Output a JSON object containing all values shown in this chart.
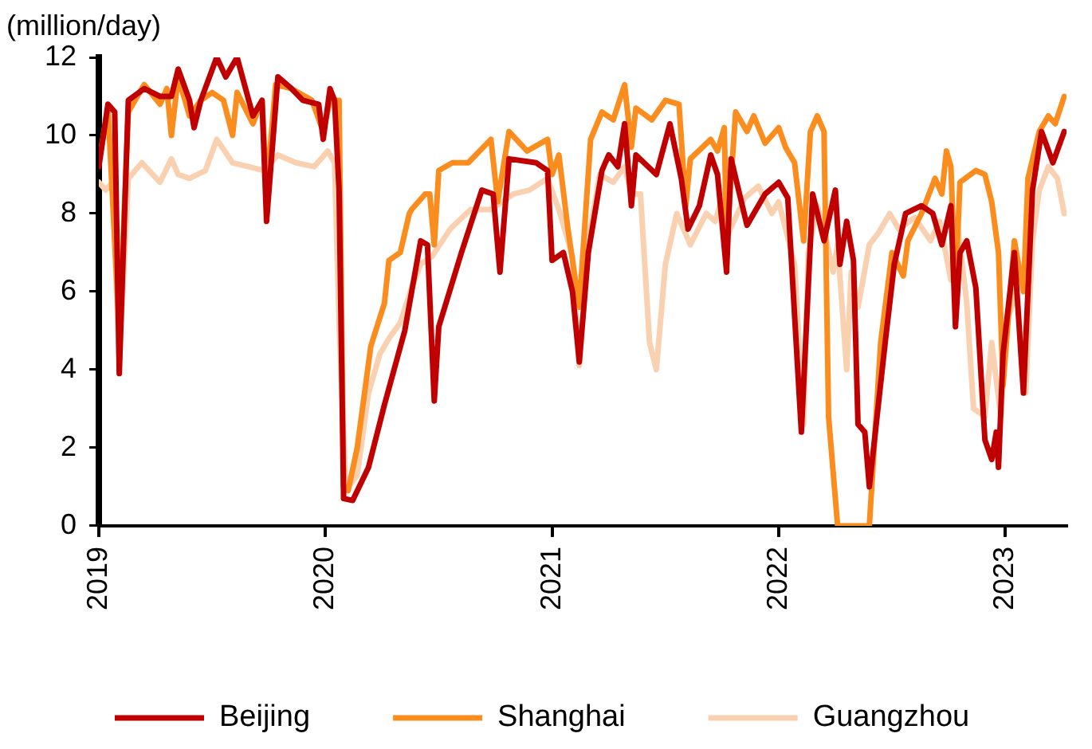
{
  "chart_data": {
    "type": "line",
    "ylabel": "(million/day)",
    "xlim": [
      2019,
      2023.27
    ],
    "xticks": [
      2019,
      2020,
      2021,
      2022,
      2023
    ],
    "ylim": [
      0,
      12
    ],
    "yticks": [
      0,
      2,
      4,
      6,
      8,
      10,
      12
    ],
    "grid": false,
    "legend": "bottom",
    "marker": "none",
    "line_style": "solid",
    "series": [
      {
        "name": "Beijing",
        "color": "#c00000",
        "x": [
          2019.0,
          2019.04,
          2019.07,
          2019.09,
          2019.13,
          2019.2,
          2019.27,
          2019.32,
          2019.35,
          2019.4,
          2019.42,
          2019.45,
          2019.52,
          2019.56,
          2019.61,
          2019.68,
          2019.72,
          2019.74,
          2019.79,
          2019.85,
          2019.9,
          2019.97,
          2019.99,
          2020.02,
          2020.04,
          2020.06,
          2020.08,
          2020.12,
          2020.19,
          2020.26,
          2020.35,
          2020.42,
          2020.45,
          2020.48,
          2020.5,
          2020.6,
          2020.69,
          2020.74,
          2020.77,
          2020.81,
          2020.93,
          2020.98,
          2021.0,
          2021.05,
          2021.09,
          2021.12,
          2021.16,
          2021.22,
          2021.25,
          2021.29,
          2021.32,
          2021.35,
          2021.37,
          2021.46,
          2021.52,
          2021.57,
          2021.6,
          2021.65,
          2021.7,
          2021.73,
          2021.77,
          2021.79,
          2021.86,
          2021.94,
          2022.0,
          2022.04,
          2022.1,
          2022.15,
          2022.2,
          2022.25,
          2022.27,
          2022.3,
          2022.33,
          2022.35,
          2022.38,
          2022.4,
          2022.47,
          2022.51,
          2022.56,
          2022.63,
          2022.68,
          2022.72,
          2022.76,
          2022.78,
          2022.8,
          2022.83,
          2022.87,
          2022.91,
          2022.94,
          2022.96,
          2022.97,
          2022.99,
          2023.04,
          2023.08,
          2023.12,
          2023.16,
          2023.21,
          2023.26
        ],
        "values": [
          9.2,
          10.8,
          10.6,
          3.9,
          10.9,
          11.2,
          11.0,
          11.0,
          11.7,
          10.9,
          10.2,
          10.9,
          12.0,
          11.5,
          12.0,
          10.5,
          10.9,
          7.8,
          11.5,
          11.2,
          10.9,
          10.8,
          9.9,
          11.2,
          10.9,
          8.6,
          0.7,
          0.65,
          1.5,
          3.1,
          5.0,
          7.3,
          7.2,
          3.2,
          5.1,
          7.0,
          8.6,
          8.5,
          6.5,
          9.4,
          9.3,
          9.1,
          6.8,
          7.0,
          6.0,
          4.2,
          7.0,
          9.1,
          9.5,
          9.2,
          10.3,
          8.2,
          9.5,
          9.0,
          10.3,
          8.9,
          7.6,
          8.2,
          9.5,
          9.0,
          6.5,
          9.4,
          7.7,
          8.5,
          8.8,
          8.4,
          2.4,
          8.5,
          7.3,
          8.6,
          6.7,
          7.8,
          6.8,
          2.6,
          2.4,
          1.0,
          4.7,
          6.7,
          8.0,
          8.2,
          8.0,
          7.2,
          8.2,
          5.1,
          7.0,
          7.3,
          6.1,
          2.2,
          1.7,
          2.4,
          1.5,
          4.4,
          7.0,
          3.4,
          8.6,
          10.1,
          9.3,
          10.1
        ]
      },
      {
        "name": "Shanghai",
        "color": "#fb8c1e",
        "x": [
          2019.0,
          2019.04,
          2019.09,
          2019.13,
          2019.2,
          2019.27,
          2019.3,
          2019.32,
          2019.35,
          2019.4,
          2019.45,
          2019.5,
          2019.55,
          2019.59,
          2019.61,
          2019.68,
          2019.72,
          2019.74,
          2019.78,
          2019.85,
          2019.94,
          2019.99,
          2020.02,
          2020.06,
          2020.08,
          2020.1,
          2020.14,
          2020.2,
          2020.26,
          2020.28,
          2020.33,
          2020.37,
          2020.38,
          2020.44,
          2020.46,
          2020.48,
          2020.5,
          2020.56,
          2020.63,
          2020.73,
          2020.76,
          2020.81,
          2020.89,
          2020.98,
          2021.0,
          2021.03,
          2021.07,
          2021.12,
          2021.17,
          2021.22,
          2021.27,
          2021.32,
          2021.35,
          2021.37,
          2021.44,
          2021.5,
          2021.56,
          2021.59,
          2021.61,
          2021.7,
          2021.73,
          2021.76,
          2021.77,
          2021.81,
          2021.86,
          2021.89,
          2021.94,
          2022.0,
          2022.03,
          2022.07,
          2022.11,
          2022.14,
          2022.17,
          2022.2,
          2022.22,
          2022.26,
          2022.4,
          2022.45,
          2022.5,
          2022.55,
          2022.57,
          2022.63,
          2022.69,
          2022.72,
          2022.74,
          2022.76,
          2022.78,
          2022.8,
          2022.87,
          2022.91,
          2022.94,
          2022.97,
          2022.99,
          2023.04,
          2023.08,
          2023.1,
          2023.15,
          2023.19,
          2023.22,
          2023.26
        ],
        "values": [
          9.3,
          10.7,
          5.0,
          10.6,
          11.3,
          10.8,
          11.2,
          10.0,
          11.5,
          10.5,
          10.9,
          11.1,
          10.9,
          10.0,
          11.1,
          10.3,
          10.9,
          8.6,
          11.3,
          11.2,
          10.9,
          10.1,
          10.9,
          10.9,
          1.0,
          0.9,
          2.0,
          4.6,
          5.7,
          6.8,
          7.0,
          8.0,
          8.1,
          8.5,
          8.5,
          7.2,
          9.1,
          9.3,
          9.3,
          9.9,
          8.3,
          10.1,
          9.6,
          9.9,
          9.0,
          9.5,
          7.6,
          5.6,
          9.9,
          10.6,
          10.4,
          11.3,
          9.7,
          10.7,
          10.4,
          10.9,
          10.8,
          8.2,
          9.4,
          9.9,
          9.6,
          10.2,
          7.2,
          10.6,
          10.1,
          10.5,
          9.8,
          10.2,
          9.7,
          9.3,
          7.3,
          10.1,
          10.5,
          10.1,
          2.8,
          0,
          0,
          4.7,
          7.0,
          6.4,
          7.3,
          8.0,
          8.9,
          8.5,
          9.6,
          9.2,
          6.1,
          8.8,
          9.1,
          9.0,
          8.3,
          7.0,
          3.6,
          7.3,
          6.0,
          8.9,
          10.1,
          10.5,
          10.3,
          11.0
        ]
      },
      {
        "name": "Guangzhou",
        "color": "#f9d0b0",
        "x": [
          2019.0,
          2019.03,
          2019.06,
          2019.09,
          2019.13,
          2019.19,
          2019.27,
          2019.32,
          2019.35,
          2019.4,
          2019.47,
          2019.52,
          2019.59,
          2019.66,
          2019.73,
          2019.79,
          2019.87,
          2019.95,
          2020.01,
          2020.04,
          2020.06,
          2020.09,
          2020.14,
          2020.19,
          2020.24,
          2020.28,
          2020.33,
          2020.38,
          2020.42,
          2020.47,
          2020.55,
          2020.64,
          2020.73,
          2020.83,
          2020.9,
          2020.98,
          2021.03,
          2021.09,
          2021.12,
          2021.16,
          2021.21,
          2021.27,
          2021.32,
          2021.35,
          2021.39,
          2021.43,
          2021.46,
          2021.5,
          2021.55,
          2021.61,
          2021.68,
          2021.72,
          2021.76,
          2021.77,
          2021.85,
          2021.91,
          2021.97,
          2022.0,
          2022.07,
          2022.11,
          2022.13,
          2022.17,
          2022.2,
          2022.24,
          2022.26,
          2022.3,
          2022.32,
          2022.35,
          2022.4,
          2022.44,
          2022.49,
          2022.53,
          2022.6,
          2022.67,
          2022.71,
          2022.76,
          2022.79,
          2022.83,
          2022.86,
          2022.91,
          2022.94,
          2022.98,
          2023.01,
          2023.05,
          2023.09,
          2023.12,
          2023.15,
          2023.19,
          2023.23,
          2023.26
        ],
        "values": [
          8.8,
          8.6,
          8.8,
          4.2,
          8.9,
          9.3,
          8.8,
          9.4,
          9.0,
          8.9,
          9.1,
          9.9,
          9.3,
          9.2,
          9.1,
          9.5,
          9.3,
          9.2,
          9.6,
          9.3,
          5.2,
          0.9,
          1.3,
          3.4,
          4.4,
          4.8,
          5.2,
          6.1,
          6.7,
          6.9,
          7.6,
          8.1,
          8.1,
          8.5,
          8.6,
          8.9,
          8.1,
          6.9,
          4.1,
          7.3,
          9.0,
          8.8,
          9.2,
          8.5,
          8.5,
          4.7,
          4.0,
          6.7,
          8.0,
          7.2,
          8.0,
          7.8,
          8.6,
          7.4,
          8.4,
          8.7,
          8.0,
          8.3,
          6.7,
          2.6,
          7.0,
          8.2,
          7.6,
          6.5,
          7.2,
          4.0,
          6.5,
          5.6,
          7.2,
          7.5,
          8.0,
          7.6,
          7.9,
          7.3,
          7.8,
          6.3,
          7.7,
          5.7,
          3.0,
          2.8,
          4.7,
          2.8,
          5.3,
          6.0,
          3.4,
          7.3,
          8.6,
          9.2,
          8.9,
          8.0
        ]
      }
    ]
  }
}
